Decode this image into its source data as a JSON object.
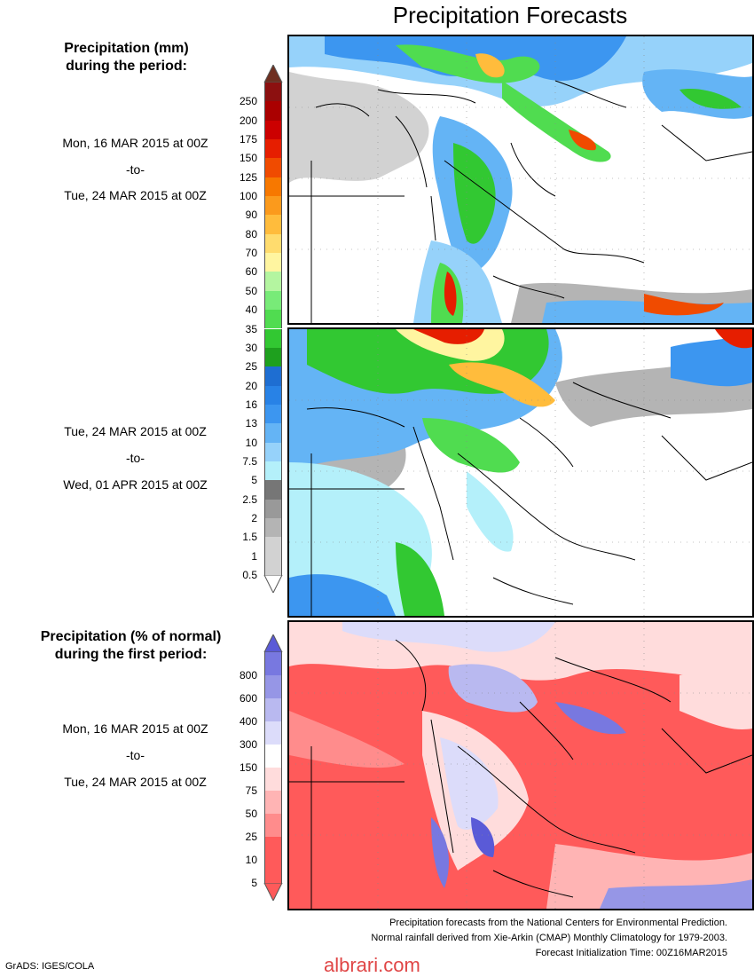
{
  "title": "Precipitation Forecasts",
  "top_heading": [
    "Precipitation (mm)",
    "during the period:"
  ],
  "period1": {
    "start": "Mon, 16 MAR 2015 at 00Z",
    "sep": "-to-",
    "end": "Tue, 24 MAR 2015 at 00Z"
  },
  "period2": {
    "start": "Tue, 24 MAR 2015 at 00Z",
    "sep": "-to-",
    "end": "Wed, 01 APR 2015 at 00Z"
  },
  "bottom_heading": [
    "Precipitation (% of normal)",
    "during the first period:"
  ],
  "period3": {
    "start": "Mon, 16 MAR 2015 at 00Z",
    "sep": "-to-",
    "end": "Tue, 24 MAR 2015 at 00Z"
  },
  "mm_scale": {
    "labels": [
      "250",
      "200",
      "175",
      "150",
      "125",
      "100",
      "90",
      "80",
      "70",
      "60",
      "50",
      "40",
      "35",
      "30",
      "25",
      "20",
      "16",
      "13",
      "10",
      "7.5",
      "5",
      "2.5",
      "2",
      "1.5",
      "1",
      "0.5"
    ],
    "colors": [
      "#6e2f20",
      "#8c1010",
      "#aa0000",
      "#cc0000",
      "#e61e00",
      "#f04b00",
      "#f77800",
      "#fb9a1c",
      "#ffbc3c",
      "#ffdc6e",
      "#fff5a0",
      "#b4f5a0",
      "#78eb78",
      "#50dc50",
      "#32c832",
      "#1ea01e",
      "#1e6ed2",
      "#2882e6",
      "#3c96f0",
      "#64b4f5",
      "#96d2fa",
      "#b4f0fa",
      "#767676",
      "#999999",
      "#b4b4b4",
      "#d2d2d2"
    ]
  },
  "pct_scale": {
    "labels": [
      "800",
      "600",
      "400",
      "300",
      "150",
      "75",
      "50",
      "25",
      "10",
      "5"
    ],
    "colors": [
      "#5a5ad7",
      "#7878e0",
      "#9696e6",
      "#b9b9f0",
      "#dcdcfa",
      "#ffffff",
      "#ffdcdc",
      "#ffb4b4",
      "#ff8c8c",
      "#ff5a5a"
    ]
  },
  "credits": [
    "Precipitation forecasts from the National Centers for Environmental Prediction.",
    "Normal rainfall derived from Xie-Arkin (CMAP) Monthly Climatology for 1979-2003.",
    "Forecast Initialization Time: 00Z16MAR2015"
  ],
  "software_label": "GrADS: IGES/COLA",
  "watermark": "albrari.com"
}
